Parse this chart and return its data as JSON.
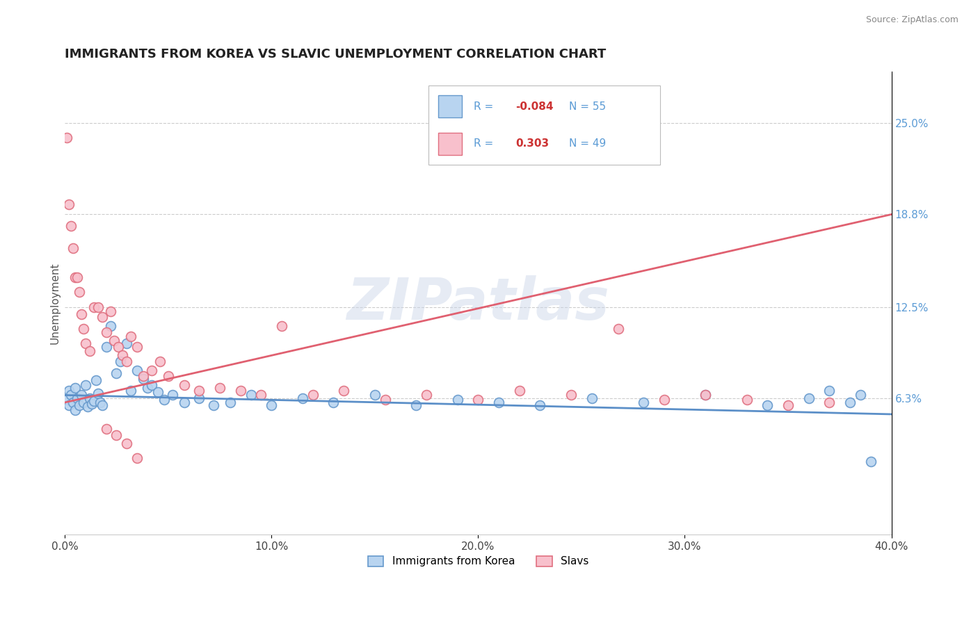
{
  "title": "IMMIGRANTS FROM KOREA VS SLAVIC UNEMPLOYMENT CORRELATION CHART",
  "source_text": "Source: ZipAtlas.com",
  "ylabel": "Unemployment",
  "xlim": [
    0.0,
    0.4
  ],
  "ylim": [
    -0.03,
    0.285
  ],
  "xtick_labels": [
    "0.0%",
    "10.0%",
    "20.0%",
    "30.0%",
    "40.0%"
  ],
  "xtick_values": [
    0.0,
    0.1,
    0.2,
    0.3,
    0.4
  ],
  "ytick_right_labels": [
    "6.3%",
    "12.5%",
    "18.8%",
    "25.0%"
  ],
  "ytick_right_values": [
    0.063,
    0.125,
    0.188,
    0.25
  ],
  "watermark": "ZIPatlas",
  "blue_R": "-0.084",
  "blue_N": "55",
  "pink_R": "0.303",
  "pink_N": "49",
  "blue_color": "#b8d4f0",
  "pink_color": "#f8c0cc",
  "blue_edge_color": "#6699cc",
  "pink_edge_color": "#e07080",
  "blue_line_color": "#5b8fc8",
  "pink_line_color": "#e06070",
  "legend_blue_label": "Immigrants from Korea",
  "legend_pink_label": "Slavs",
  "blue_trend_start": 0.065,
  "blue_trend_end": 0.052,
  "pink_trend_start": 0.06,
  "pink_trend_end": 0.188,
  "blue_scatter_x": [
    0.001,
    0.002,
    0.002,
    0.003,
    0.004,
    0.005,
    0.005,
    0.006,
    0.007,
    0.008,
    0.009,
    0.01,
    0.011,
    0.012,
    0.013,
    0.014,
    0.015,
    0.016,
    0.017,
    0.018,
    0.02,
    0.022,
    0.025,
    0.027,
    0.03,
    0.032,
    0.035,
    0.038,
    0.04,
    0.042,
    0.045,
    0.048,
    0.052,
    0.058,
    0.065,
    0.072,
    0.08,
    0.09,
    0.1,
    0.115,
    0.13,
    0.15,
    0.17,
    0.19,
    0.21,
    0.23,
    0.255,
    0.28,
    0.31,
    0.34,
    0.36,
    0.37,
    0.38,
    0.385,
    0.39
  ],
  "blue_scatter_y": [
    0.062,
    0.058,
    0.068,
    0.065,
    0.06,
    0.055,
    0.07,
    0.063,
    0.058,
    0.065,
    0.06,
    0.072,
    0.057,
    0.063,
    0.059,
    0.061,
    0.075,
    0.066,
    0.06,
    0.058,
    0.098,
    0.112,
    0.08,
    0.088,
    0.1,
    0.068,
    0.082,
    0.076,
    0.07,
    0.072,
    0.067,
    0.062,
    0.065,
    0.06,
    0.063,
    0.058,
    0.06,
    0.065,
    0.058,
    0.063,
    0.06,
    0.065,
    0.058,
    0.062,
    0.06,
    0.058,
    0.063,
    0.06,
    0.065,
    0.058,
    0.063,
    0.068,
    0.06,
    0.065,
    0.02
  ],
  "pink_scatter_x": [
    0.001,
    0.002,
    0.003,
    0.004,
    0.005,
    0.006,
    0.007,
    0.008,
    0.009,
    0.01,
    0.012,
    0.014,
    0.016,
    0.018,
    0.02,
    0.022,
    0.024,
    0.026,
    0.028,
    0.03,
    0.032,
    0.035,
    0.038,
    0.042,
    0.046,
    0.05,
    0.058,
    0.065,
    0.075,
    0.085,
    0.095,
    0.105,
    0.12,
    0.135,
    0.155,
    0.175,
    0.2,
    0.22,
    0.245,
    0.268,
    0.29,
    0.31,
    0.33,
    0.35,
    0.37,
    0.02,
    0.025,
    0.03,
    0.035
  ],
  "pink_scatter_y": [
    0.24,
    0.195,
    0.18,
    0.165,
    0.145,
    0.145,
    0.135,
    0.12,
    0.11,
    0.1,
    0.095,
    0.125,
    0.125,
    0.118,
    0.108,
    0.122,
    0.102,
    0.098,
    0.092,
    0.088,
    0.105,
    0.098,
    0.078,
    0.082,
    0.088,
    0.078,
    0.072,
    0.068,
    0.07,
    0.068,
    0.065,
    0.112,
    0.065,
    0.068,
    0.062,
    0.065,
    0.062,
    0.068,
    0.065,
    0.11,
    0.062,
    0.065,
    0.062,
    0.058,
    0.06,
    0.042,
    0.038,
    0.032,
    0.022
  ]
}
